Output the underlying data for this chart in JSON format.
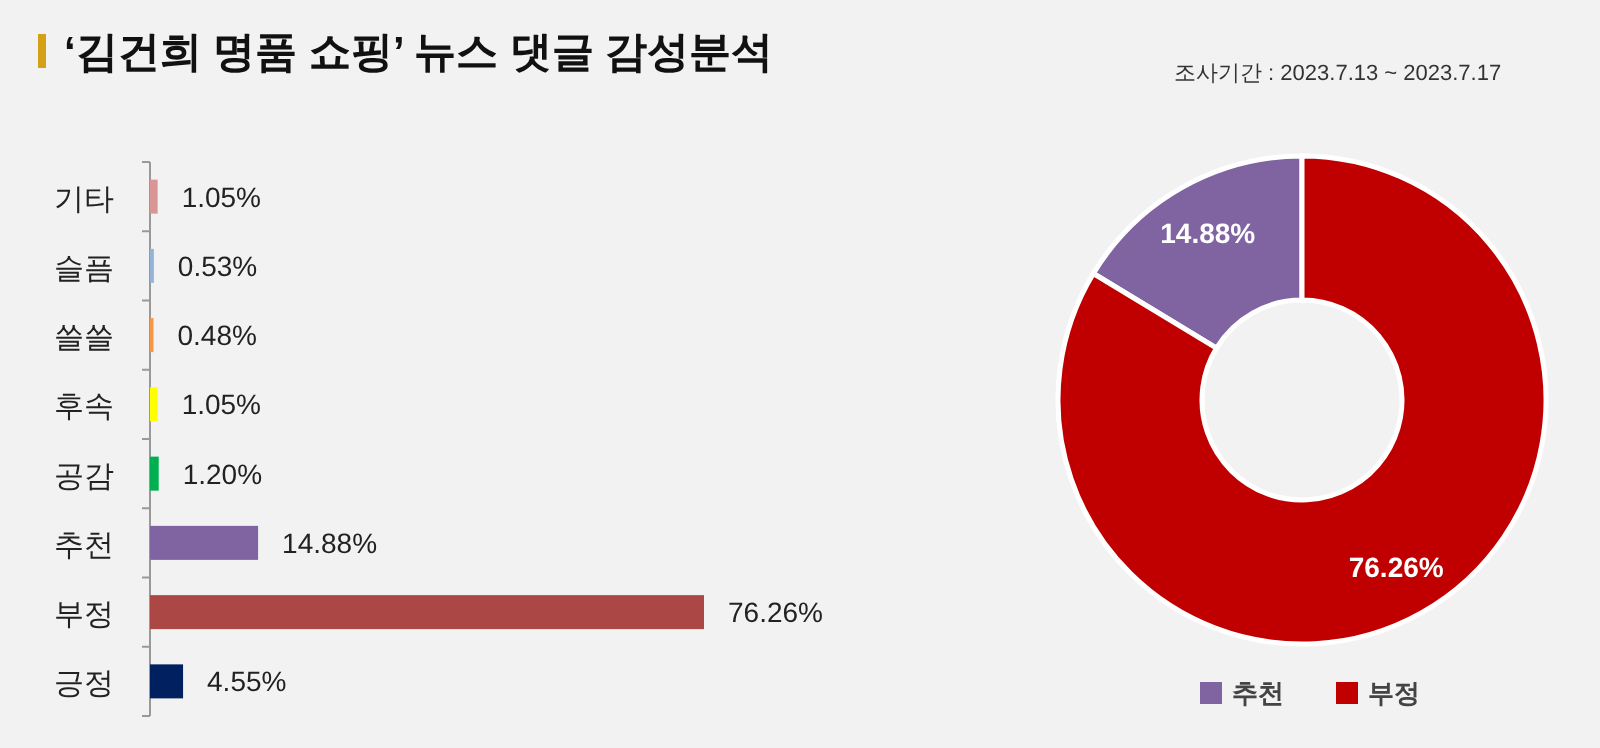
{
  "chart_data": [
    {
      "type": "bar",
      "orientation": "horizontal",
      "title": "‘김건희 명품 쇼핑’ 뉴스 댓글 감성분석",
      "categories": [
        "기타",
        "슬픔",
        "쓸쓸",
        "후속",
        "공감",
        "추천",
        "부정",
        "긍정"
      ],
      "values": [
        1.05,
        0.53,
        0.48,
        1.05,
        1.2,
        14.88,
        76.26,
        4.55
      ],
      "colors": [
        "#d99694",
        "#95b3d7",
        "#f79646",
        "#ffff00",
        "#00b050",
        "#8064a2",
        "#ab4846",
        "#002060"
      ],
      "value_labels": [
        "1.05%",
        "0.53%",
        "0.48%",
        "1.05%",
        "1.20%",
        "14.88%",
        "76.26%",
        "4.55%"
      ]
    },
    {
      "type": "donut",
      "annotations": [
        "조사기간 : 2023.7.13 ~ 2023.7.17"
      ],
      "categories": [
        "추천",
        "부정"
      ],
      "values": [
        14.88,
        76.26
      ],
      "colors": [
        "#8064a2",
        "#c00000"
      ],
      "value_labels": [
        "14.88%",
        "76.26%"
      ],
      "legend": "bottom"
    }
  ]
}
